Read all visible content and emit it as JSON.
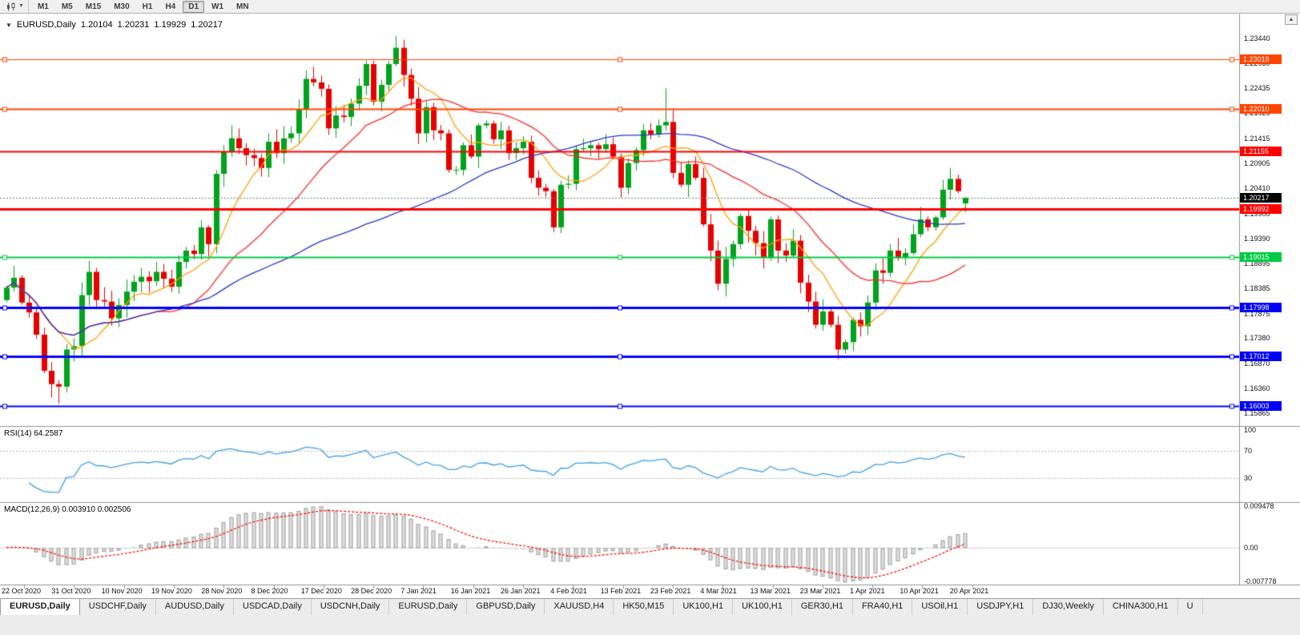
{
  "icons": {
    "caret_down": "▼",
    "title_marker": "▼",
    "scroll_up": "▲"
  },
  "toolbar": {
    "timeframes": [
      "M1",
      "M5",
      "M15",
      "M30",
      "H1",
      "H4",
      "D1",
      "W1",
      "MN"
    ],
    "active_timeframe": "D1"
  },
  "chart_header": {
    "symbol_period": "EURUSD,Daily",
    "open": "1.20104",
    "high": "1.20231",
    "low": "1.19929",
    "close": "1.20217"
  },
  "price_axis_labels": [
    "1.23440",
    "1.22930",
    "1.22435",
    "1.21925",
    "1.21415",
    "1.20905",
    "1.20410",
    "1.19900",
    "1.19390",
    "1.18895",
    "1.18385",
    "1.17875",
    "1.17380",
    "1.16870",
    "1.16360",
    "1.15865"
  ],
  "levels": [
    {
      "price": "1.23019",
      "value": 1.23019,
      "color": "#ff4500",
      "line_width": 1,
      "handles": true
    },
    {
      "price": "1.22010",
      "value": 1.2201,
      "color": "#ff4500",
      "line_width": 2,
      "handles": true
    },
    {
      "price": "1.21155",
      "value": 1.21155,
      "color": "#ff0000",
      "line_width": 2,
      "handles": false
    },
    {
      "price": "1.19992",
      "value": 1.19992,
      "color": "#ff0000",
      "line_width": 3,
      "handles": false
    },
    {
      "price": "1.19015",
      "value": 1.19015,
      "color": "#00cc44",
      "line_width": 2,
      "handles": true
    },
    {
      "price": "1.17998",
      "value": 1.17998,
      "color": "#0000ff",
      "line_width": 3,
      "handles": true
    },
    {
      "price": "1.17012",
      "value": 1.17012,
      "color": "#0000ff",
      "line_width": 3,
      "handles": true
    },
    {
      "price": "1.16003",
      "value": 1.16003,
      "color": "#0000ff",
      "line_width": 2,
      "handles": true
    }
  ],
  "current_price": {
    "label": "1.20217",
    "value": 1.20217,
    "tag_bg": "#000000"
  },
  "rsi_panel": {
    "label": "RSI(14) 64.2587",
    "value": "64.2587",
    "axis_labels": [
      "100",
      "70",
      "30"
    ],
    "upper_level": 70,
    "lower_level": 30,
    "line_color": "#3f9fe8"
  },
  "macd_panel": {
    "label": "MACD(12,26,9) 0.003910 0.002506",
    "macd_value": "0.003910",
    "signal_value": "0.002506",
    "axis_labels": [
      "0.009478",
      "0.00",
      "-0.007778"
    ],
    "axis_max": 0.009478,
    "axis_min": -0.007778,
    "histogram_fill": "#dedede",
    "histogram_stroke": "#a2a2a2",
    "signal_color": "#ff0000"
  },
  "date_axis": [
    "22 Oct 2020",
    "31 Oct 2020",
    "10 Nov 2020",
    "19 Nov 2020",
    "28 Nov 2020",
    "8 Dec 2020",
    "17 Dec 2020",
    "28 Dec 2020",
    "7 Jan 2021",
    "16 Jan 2021",
    "26 Jan 2021",
    "4 Feb 2021",
    "13 Feb 2021",
    "23 Feb 2021",
    "4 Mar 2021",
    "13 Mar 2021",
    "23 Mar 2021",
    "1 Apr 2021",
    "10 Apr 2021",
    "20 Apr 2021"
  ],
  "tabs": [
    {
      "label": "EURUSD,Daily",
      "active": true
    },
    {
      "label": "USDCHF,Daily",
      "active": false
    },
    {
      "label": "AUDUSD,Daily",
      "active": false
    },
    {
      "label": "USDCAD,Daily",
      "active": false
    },
    {
      "label": "USDCNH,Daily",
      "active": false
    },
    {
      "label": "EURUSD,Daily",
      "active": false
    },
    {
      "label": "GBPUSD,Daily",
      "active": false
    },
    {
      "label": "XAUUSD,H4",
      "active": false
    },
    {
      "label": "HK50,M15",
      "active": false
    },
    {
      "label": "UK100,H1",
      "active": false
    },
    {
      "label": "UK100,H1",
      "active": false
    },
    {
      "label": "GER30,H1",
      "active": false
    },
    {
      "label": "FRA40,H1",
      "active": false
    },
    {
      "label": "USOil,H1",
      "active": false
    },
    {
      "label": "USDJPY,H1",
      "active": false
    },
    {
      "label": "DJ30,Weekly",
      "active": false
    },
    {
      "label": "CHINA300,H1",
      "active": false
    },
    {
      "label": "U",
      "active": false
    }
  ],
  "chart_data": {
    "type": "candlestick",
    "symbol": "EURUSD",
    "period": "Daily",
    "up_color": "#00a31c",
    "down_color": "#e60000",
    "price_range": {
      "top": 1.2394,
      "bottom": 1.1562
    },
    "first_open": 1.1815,
    "closes": [
      1.184,
      1.186,
      1.181,
      1.179,
      1.1745,
      1.1672,
      1.1645,
      1.164,
      1.1715,
      1.1722,
      1.1825,
      1.1872,
      1.1815,
      1.1812,
      1.1778,
      1.1805,
      1.1832,
      1.1852,
      1.1862,
      1.1853,
      1.1872,
      1.1858,
      1.1842,
      1.1892,
      1.1915,
      1.1908,
      1.1962,
      1.1928,
      1.207,
      1.2115,
      1.2142,
      1.2122,
      1.2108,
      1.2102,
      1.2082,
      1.2135,
      1.2112,
      1.2142,
      1.2152,
      1.22,
      1.2262,
      1.2255,
      1.2242,
      1.2162,
      1.2188,
      1.2185,
      1.2212,
      1.2248,
      1.2292,
      1.2216,
      1.225,
      1.2292,
      1.2325,
      1.227,
      1.2222,
      1.2152,
      1.2205,
      1.2158,
      1.2152,
      1.2078,
      1.2078,
      1.2128,
      1.2105,
      1.2168,
      1.2172,
      1.214,
      1.2158,
      1.2112,
      1.2122,
      1.2135,
      1.2062,
      1.2042,
      1.2035,
      1.1962,
      1.2048,
      1.205,
      1.212,
      1.2122,
      1.2128,
      1.212,
      1.213,
      1.2105,
      1.2042,
      1.2092,
      1.2118,
      1.2158,
      1.215,
      1.2168,
      1.2175,
      1.2072,
      1.2048,
      1.209,
      1.2062,
      1.1968,
      1.1915,
      1.1848,
      1.1898,
      1.1928,
      1.1985,
      1.1955,
      1.193,
      1.19,
      1.1978,
      1.1915,
      1.1905,
      1.1935,
      1.185,
      1.1812,
      1.1765,
      1.1792,
      1.1765,
      1.1715,
      1.173,
      1.1775,
      1.1762,
      1.181,
      1.1875,
      1.187,
      1.1915,
      1.19,
      1.191,
      1.1948,
      1.1978,
      1.1962,
      1.1982,
      1.2038,
      1.206,
      1.2035,
      1.20217
    ],
    "high_overrides": {
      "52": 1.2349,
      "88": 1.2243,
      "126": 1.2082
    },
    "low_overrides": {
      "6": 1.1618,
      "7": 1.1606,
      "111": 1.1704
    },
    "last_candle": {
      "open": 1.20104,
      "high": 1.20231,
      "low": 1.19929,
      "close": 1.20217
    },
    "overlays": [
      {
        "name": "ma-fast",
        "type": "sma",
        "period": 8,
        "color": "#ffa000"
      },
      {
        "name": "ma-medium",
        "type": "sma",
        "period": 21,
        "color": "#ff2a2a"
      },
      {
        "name": "ma-slow",
        "type": "sma",
        "period": 55,
        "color": "#2b35c8"
      }
    ],
    "indicators": [
      {
        "name": "RSI",
        "period": 14,
        "current": 64.2587
      },
      {
        "name": "MACD",
        "fast": 12,
        "slow": 26,
        "signal": 9,
        "current_macd": 0.00391,
        "current_signal": 0.002506
      }
    ]
  }
}
